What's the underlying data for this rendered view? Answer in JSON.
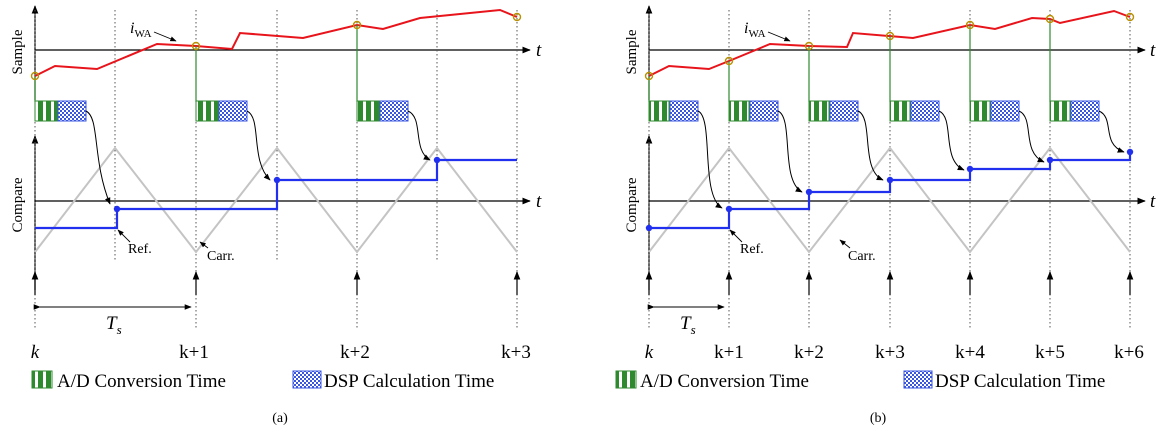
{
  "colors": {
    "sample_line": "#e8141b",
    "sample_point_stroke": "#b89000",
    "ad_green": "#2f8a2f",
    "ad_stripe": "#ffffff",
    "dsp_blue": "#3a55e0",
    "dsp_light": "#ffffff",
    "reference": "#2030ee",
    "carrier": "#c4c4c4",
    "axis": "#000000",
    "dotted": "#444444",
    "sample_drop": "#2f8a2f"
  },
  "icons": {
    "ad_block": "green-vertical-stripe-box",
    "dsp_block": "blue-checkered-box",
    "arrow": "filled-arrowhead"
  },
  "panels": [
    {
      "id": "a",
      "caption": "(a)",
      "labels": {
        "sample_axis": "Sample",
        "compare_axis": "Compare",
        "t_top": "t",
        "t_bottom": "t",
        "iwa_i": "i",
        "iwa_sub": "WA",
        "ref": "Ref.",
        "carr": "Carr.",
        "ts_main": "T",
        "ts_sub": "s"
      },
      "ticks": [
        "k",
        "k+1",
        "k+2",
        "k+3"
      ],
      "legend": {
        "ad": "A/D Conversion Time",
        "dsp": "DSP Calculation Time"
      }
    },
    {
      "id": "b",
      "caption": "(b)",
      "labels": {
        "sample_axis": "Sample",
        "compare_axis": "Compare",
        "t_top": "t",
        "t_bottom": "t",
        "iwa_i": "i",
        "iwa_sub": "WA",
        "ref": "Ref.",
        "carr": "Carr.",
        "ts_main": "T",
        "ts_sub": "s"
      },
      "ticks": [
        "k",
        "k+1",
        "k+2",
        "k+3",
        "k+4",
        "k+5",
        "k+6"
      ],
      "legend": {
        "ad": "A/D Conversion Time",
        "dsp": "DSP Calculation Time"
      }
    }
  ]
}
